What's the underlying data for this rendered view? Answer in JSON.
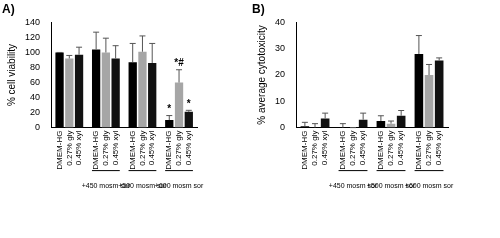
{
  "chart_data": [
    {
      "type": "bar",
      "title": "A)",
      "ylabel": "% cell viability",
      "categories": [
        null,
        "+450 mosm sor",
        "+500 mosm sor",
        "+600 mosm sor"
      ],
      "series": [
        {
          "name": "DMEM-HG",
          "color": "#000000",
          "values": [
            100,
            104,
            87,
            10
          ],
          "errors": [
            0,
            23,
            25,
            6
          ],
          "annotations": [
            null,
            null,
            null,
            "*"
          ]
        },
        {
          "name": "0.27% gly",
          "color": "#a6a6a6",
          "values": [
            92,
            100,
            101,
            60
          ],
          "errors": [
            4,
            19,
            21,
            17
          ],
          "annotations": [
            null,
            null,
            null,
            "*#"
          ]
        },
        {
          "name": "0.45% xyl",
          "color": "#111111",
          "values": [
            97,
            92,
            86,
            21
          ],
          "errors": [
            10,
            17,
            26,
            2
          ],
          "annotations": [
            null,
            null,
            null,
            "*"
          ]
        }
      ],
      "ylim": [
        0,
        140
      ],
      "yticks": [
        0,
        20,
        40,
        60,
        80,
        100,
        120,
        140
      ],
      "grid": false
    },
    {
      "type": "bar",
      "title": "B)",
      "ylabel": "% average cytotoxicity",
      "categories": [
        null,
        "+450 mosm sor",
        "+500 mosm sor",
        "+600 mosm sor"
      ],
      "series": [
        {
          "name": "DMEM-HG",
          "color": "#000000",
          "values": [
            0.5,
            0,
            2.5,
            28
          ],
          "errors": [
            1.5,
            1.5,
            2,
            7
          ]
        },
        {
          "name": "0.27% gly",
          "color": "#a6a6a6",
          "values": [
            0,
            0,
            1.5,
            20
          ],
          "errors": [
            1.5,
            0,
            1,
            4
          ]
        },
        {
          "name": "0.45% xyl",
          "color": "#111111",
          "values": [
            3.5,
            3,
            4.5,
            25.5
          ],
          "errors": [
            2,
            2.5,
            2,
            1
          ]
        }
      ],
      "ylim": [
        0,
        40
      ],
      "yticks": [
        0,
        10,
        20,
        30,
        40
      ],
      "grid": false
    }
  ]
}
